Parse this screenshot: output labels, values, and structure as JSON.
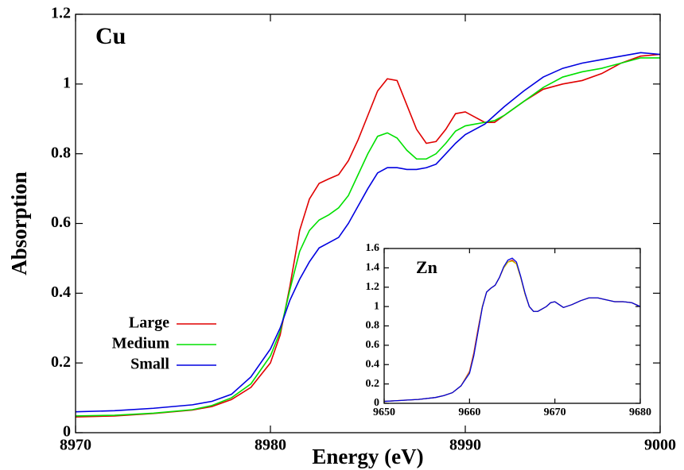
{
  "chart_data": [
    {
      "type": "line",
      "xlabel": "Energy (eV)",
      "ylabel": "Absorption",
      "annotation": "Cu",
      "xlim": [
        8970,
        9000
      ],
      "xticks": [
        8970,
        8980,
        8990,
        9000
      ],
      "ylim": [
        0,
        1.2
      ],
      "yticks": [
        0,
        0.2,
        0.4,
        0.6,
        0.8,
        1,
        1.2
      ],
      "legend": "lower left",
      "x": [
        8970,
        8972,
        8974,
        8976,
        8977,
        8978,
        8979,
        8980,
        8980.5,
        8981,
        8981.5,
        8982,
        8982.5,
        8983,
        8983.5,
        8984,
        8984.5,
        8985,
        8985.5,
        8986,
        8986.5,
        8987,
        8987.5,
        8988,
        8988.5,
        8989,
        8989.5,
        8990,
        8990.5,
        8991,
        8991.5,
        8992,
        8993,
        8994,
        8995,
        8996,
        8997,
        8998,
        8999,
        9000
      ],
      "series": [
        {
          "name": "Large",
          "color": "#e00000",
          "values": [
            0.045,
            0.048,
            0.055,
            0.065,
            0.075,
            0.095,
            0.13,
            0.2,
            0.28,
            0.42,
            0.58,
            0.67,
            0.715,
            0.728,
            0.74,
            0.78,
            0.84,
            0.91,
            0.98,
            1.015,
            1.01,
            0.94,
            0.87,
            0.83,
            0.835,
            0.87,
            0.915,
            0.92,
            0.905,
            0.89,
            0.89,
            0.91,
            0.95,
            0.985,
            1.0,
            1.01,
            1.03,
            1.06,
            1.08,
            1.085
          ]
        },
        {
          "name": "Medium",
          "color": "#00e000",
          "values": [
            0.048,
            0.05,
            0.056,
            0.066,
            0.078,
            0.1,
            0.14,
            0.22,
            0.29,
            0.41,
            0.52,
            0.58,
            0.61,
            0.625,
            0.645,
            0.68,
            0.74,
            0.8,
            0.85,
            0.86,
            0.845,
            0.81,
            0.785,
            0.785,
            0.8,
            0.83,
            0.865,
            0.88,
            0.885,
            0.89,
            0.895,
            0.91,
            0.95,
            0.99,
            1.02,
            1.035,
            1.045,
            1.06,
            1.075,
            1.075
          ]
        },
        {
          "name": "Small",
          "color": "#0000e0",
          "values": [
            0.06,
            0.063,
            0.07,
            0.08,
            0.09,
            0.11,
            0.16,
            0.24,
            0.3,
            0.38,
            0.44,
            0.49,
            0.53,
            0.545,
            0.56,
            0.6,
            0.65,
            0.7,
            0.745,
            0.76,
            0.76,
            0.755,
            0.755,
            0.76,
            0.77,
            0.8,
            0.83,
            0.855,
            0.87,
            0.885,
            0.91,
            0.935,
            0.98,
            1.02,
            1.045,
            1.06,
            1.07,
            1.08,
            1.09,
            1.085
          ]
        }
      ]
    },
    {
      "type": "line",
      "annotation": "Zn",
      "xlim": [
        9650,
        9680
      ],
      "xticks": [
        9650,
        9660,
        9670,
        9680
      ],
      "ylim": [
        0,
        1.6
      ],
      "yticks": [
        0,
        0.2,
        0.4,
        0.6,
        0.8,
        1,
        1.2,
        1.4,
        1.6
      ],
      "x": [
        9650,
        9652,
        9654,
        9656,
        9657,
        9658,
        9659,
        9660,
        9660.5,
        9661,
        9661.5,
        9662,
        9662.5,
        9663,
        9663.5,
        9664,
        9664.5,
        9665,
        9665.5,
        9666,
        9666.5,
        9667,
        9667.5,
        9668,
        9669,
        9669.5,
        9670,
        9670.5,
        9671,
        9672,
        9673,
        9674,
        9675,
        9676,
        9677,
        9678,
        9679,
        9680
      ],
      "series": [
        {
          "color": "#e00000",
          "values": [
            0.02,
            0.03,
            0.04,
            0.06,
            0.08,
            0.11,
            0.18,
            0.33,
            0.52,
            0.77,
            1.0,
            1.15,
            1.19,
            1.22,
            1.3,
            1.4,
            1.46,
            1.48,
            1.44,
            1.3,
            1.13,
            1.0,
            0.95,
            0.95,
            1.0,
            1.04,
            1.05,
            1.02,
            0.99,
            1.02,
            1.06,
            1.09,
            1.09,
            1.07,
            1.05,
            1.05,
            1.04,
            1.0
          ]
        },
        {
          "color": "#c8c800",
          "values": [
            0.02,
            0.03,
            0.04,
            0.06,
            0.08,
            0.11,
            0.18,
            0.32,
            0.5,
            0.75,
            1.0,
            1.15,
            1.19,
            1.22,
            1.3,
            1.4,
            1.46,
            1.47,
            1.44,
            1.3,
            1.13,
            1.0,
            0.95,
            0.95,
            1.0,
            1.04,
            1.05,
            1.02,
            0.99,
            1.02,
            1.06,
            1.09,
            1.09,
            1.07,
            1.05,
            1.05,
            1.04,
            1.0
          ]
        },
        {
          "color": "#0000e0",
          "values": [
            0.02,
            0.03,
            0.04,
            0.06,
            0.08,
            0.11,
            0.18,
            0.31,
            0.49,
            0.74,
            0.99,
            1.15,
            1.19,
            1.22,
            1.3,
            1.41,
            1.48,
            1.5,
            1.46,
            1.31,
            1.14,
            1.0,
            0.95,
            0.95,
            1.0,
            1.04,
            1.05,
            1.02,
            0.99,
            1.02,
            1.06,
            1.09,
            1.09,
            1.07,
            1.05,
            1.05,
            1.04,
            1.0
          ]
        }
      ]
    }
  ]
}
